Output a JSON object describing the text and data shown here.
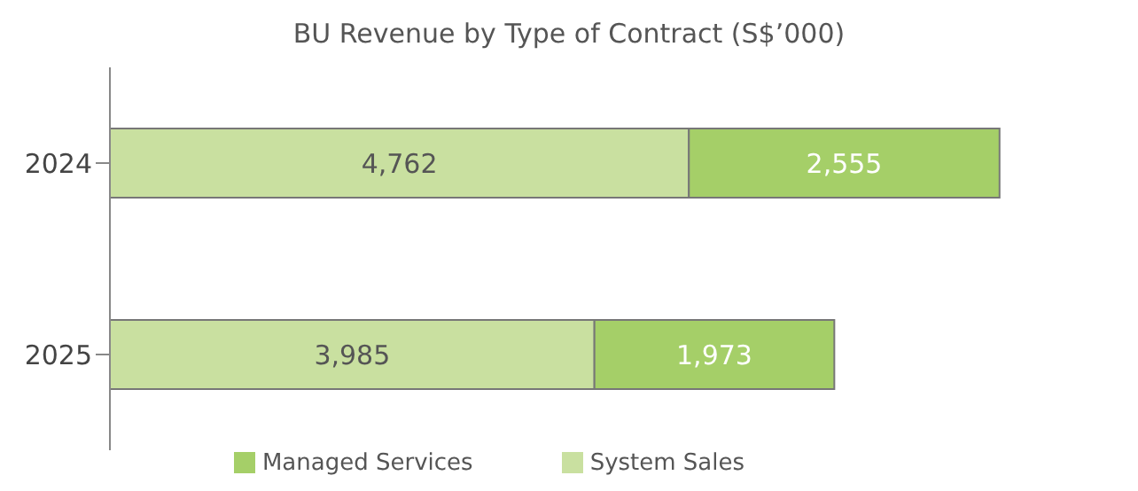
{
  "chart_data": {
    "type": "bar",
    "orientation": "horizontal",
    "stacked": true,
    "title": "BU Revenue by Type of Contract (S$’000)",
    "categories": [
      "2024",
      "2025"
    ],
    "series": [
      {
        "name": "System Sales",
        "color": "#c9e0a0",
        "values": [
          4762,
          3985
        ],
        "value_labels": [
          "4,762",
          "3,985"
        ]
      },
      {
        "name": "Managed Services",
        "color": "#a5cf68",
        "values": [
          2555,
          1973
        ],
        "value_labels": [
          "2,555",
          "1,973"
        ]
      }
    ],
    "legend": "bottom",
    "grid": false
  }
}
